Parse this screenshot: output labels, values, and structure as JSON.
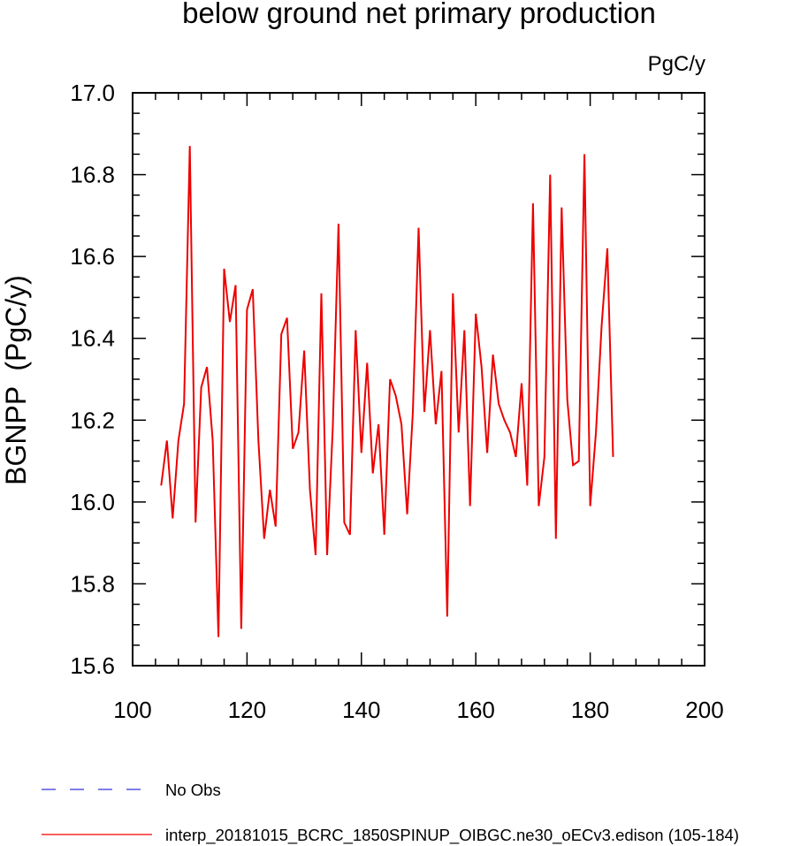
{
  "chart_data": {
    "type": "line",
    "title": "below ground net primary production",
    "units_label": "PgC/y",
    "ylabel": "BGNPP  (PgC/y)",
    "xlabel": "",
    "xlim": [
      100,
      200
    ],
    "ylim": [
      15.6,
      17.0
    ],
    "x_ticks": [
      100,
      120,
      140,
      160,
      180,
      200
    ],
    "y_ticks": [
      15.6,
      15.8,
      16.0,
      16.2,
      16.4,
      16.6,
      16.8,
      17.0
    ],
    "grid": false,
    "legend_position": "bottom-left",
    "series": [
      {
        "name": "interp_20181015_BCRC_1850SPINUP_OIBGC.ne30_oECv3.edison (105-184)",
        "color": "#ee0000",
        "style": "solid",
        "x": [
          105,
          106,
          107,
          108,
          109,
          110,
          111,
          112,
          113,
          114,
          115,
          116,
          117,
          118,
          119,
          120,
          121,
          122,
          123,
          124,
          125,
          126,
          127,
          128,
          129,
          130,
          131,
          132,
          133,
          134,
          135,
          136,
          137,
          138,
          139,
          140,
          141,
          142,
          143,
          144,
          145,
          146,
          147,
          148,
          149,
          150,
          151,
          152,
          153,
          154,
          155,
          156,
          157,
          158,
          159,
          160,
          161,
          162,
          163,
          164,
          165,
          166,
          167,
          168,
          169,
          170,
          171,
          172,
          173,
          174,
          175,
          176,
          177,
          178,
          179,
          180,
          181,
          182,
          183,
          184
        ],
        "y": [
          16.04,
          16.15,
          15.96,
          16.15,
          16.24,
          16.87,
          15.95,
          16.28,
          16.33,
          16.15,
          15.67,
          16.57,
          16.44,
          16.53,
          15.69,
          16.47,
          16.52,
          16.15,
          15.91,
          16.03,
          15.94,
          16.41,
          16.45,
          16.13,
          16.17,
          16.37,
          16.03,
          15.87,
          16.51,
          15.87,
          16.18,
          16.68,
          15.95,
          15.92,
          16.42,
          16.12,
          16.34,
          16.07,
          16.19,
          15.92,
          16.3,
          16.26,
          16.19,
          15.97,
          16.22,
          16.67,
          16.22,
          16.42,
          16.19,
          16.32,
          15.72,
          16.51,
          16.17,
          16.42,
          15.99,
          16.46,
          16.33,
          16.12,
          16.36,
          16.24,
          16.2,
          16.17,
          16.11,
          16.29,
          16.04,
          16.73,
          15.99,
          16.11,
          16.8,
          15.91,
          16.72,
          16.25,
          16.09,
          16.1,
          16.85,
          15.99,
          16.17,
          16.43,
          16.62,
          16.11
        ]
      }
    ],
    "legend": [
      {
        "label": "No Obs",
        "color": "#3333dd",
        "style": "dashed"
      },
      {
        "label": "interp_20181015_BCRC_1850SPINUP_OIBGC.ne30_oECv3.edison (105-184)",
        "color": "#ee0000",
        "style": "solid"
      }
    ]
  }
}
